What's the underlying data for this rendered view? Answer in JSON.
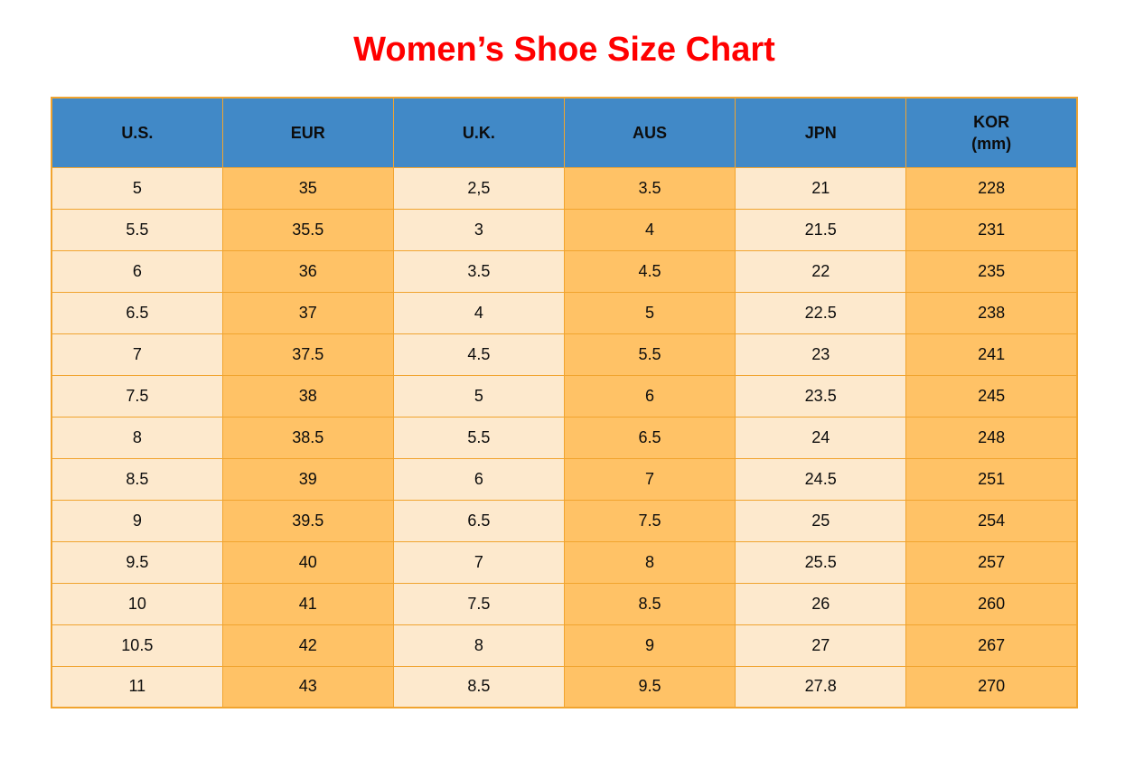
{
  "title": "Women’s Shoe Size Chart",
  "colors": {
    "title_red": "#ff0000",
    "header_bg": "#4189c7",
    "col_light": "#fde9cd",
    "col_orange": "#ffc266",
    "border_orange": "#f1a42f",
    "text_dark": "#0d0d0d"
  },
  "chart_data": {
    "type": "table",
    "title": "Women’s Shoe Size Chart",
    "columns": [
      "U.S.",
      "EUR",
      "U.K.",
      "AUS",
      "JPN",
      "KOR (mm)"
    ],
    "header_display": [
      "U.S.",
      "EUR",
      "U.K.",
      "AUS",
      "JPN",
      "KOR\n(mm)"
    ],
    "rows": [
      [
        "5",
        "35",
        "2,5",
        "3.5",
        "21",
        "228"
      ],
      [
        "5.5",
        "35.5",
        "3",
        "4",
        "21.5",
        "231"
      ],
      [
        "6",
        "36",
        "3.5",
        "4.5",
        "22",
        "235"
      ],
      [
        "6.5",
        "37",
        "4",
        "5",
        "22.5",
        "238"
      ],
      [
        "7",
        "37.5",
        "4.5",
        "5.5",
        "23",
        "241"
      ],
      [
        "7.5",
        "38",
        "5",
        "6",
        "23.5",
        "245"
      ],
      [
        "8",
        "38.5",
        "5.5",
        "6.5",
        "24",
        "248"
      ],
      [
        "8.5",
        "39",
        "6",
        "7",
        "24.5",
        "251"
      ],
      [
        "9",
        "39.5",
        "6.5",
        "7.5",
        "25",
        "254"
      ],
      [
        "9.5",
        "40",
        "7",
        "8",
        "25.5",
        "257"
      ],
      [
        "10",
        "41",
        "7.5",
        "8.5",
        "26",
        "260"
      ],
      [
        "10.5",
        "42",
        "8",
        "9",
        "27",
        "267"
      ],
      [
        "11",
        "43",
        "8.5",
        "9.5",
        "27.8",
        "270"
      ]
    ],
    "layout": {
      "grid": true,
      "column_fill_pattern": [
        "col_light",
        "col_orange",
        "col_light",
        "col_orange",
        "col_light",
        "col_orange"
      ],
      "header_fill": "header_bg",
      "num_columns": 6,
      "num_rows": 13
    }
  }
}
